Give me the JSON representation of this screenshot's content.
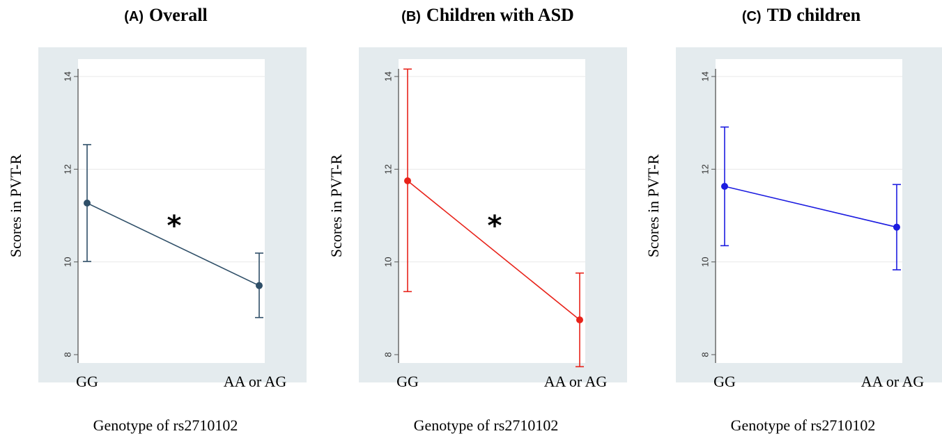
{
  "chart_data": [
    {
      "type": "line",
      "title_letter": "(A)",
      "title": "Overall",
      "xlabel": "Genotype of rs2710102",
      "ylabel": "Scores in PVT-R",
      "categories": [
        "GG",
        "AA or AG"
      ],
      "ylim": [
        8,
        14
      ],
      "yticks": [
        "8",
        "10",
        "12",
        "14"
      ],
      "grid": true,
      "color": "#2f4f68",
      "values": [
        11.27,
        9.49
      ],
      "ci_low": [
        10.01,
        8.8
      ],
      "ci_high": [
        12.53,
        10.19
      ],
      "annotation": "*"
    },
    {
      "type": "line",
      "title_letter": "(B)",
      "title": "Children with ASD",
      "xlabel": "Genotype of rs2710102",
      "ylabel": "Scores in PVT-R",
      "categories": [
        "GG",
        "AA or AG"
      ],
      "ylim": [
        8,
        14
      ],
      "yticks": [
        "8",
        "10",
        "12",
        "14"
      ],
      "grid": true,
      "color": "#e8231a",
      "values": [
        11.75,
        8.75
      ],
      "ci_low": [
        9.36,
        7.74
      ],
      "ci_high": [
        14.16,
        9.76
      ],
      "annotation": "*"
    },
    {
      "type": "line",
      "title_letter": "(C)",
      "title": "TD children",
      "xlabel": "Genotype of rs2710102",
      "ylabel": "Scores in PVT-R",
      "categories": [
        "GG",
        "AA or AG"
      ],
      "ylim": [
        8,
        14
      ],
      "yticks": [
        "8",
        "10",
        "12",
        "14"
      ],
      "grid": true,
      "color": "#1c1ce0",
      "values": [
        11.63,
        10.75
      ],
      "ci_low": [
        10.35,
        9.83
      ],
      "ci_high": [
        12.91,
        11.67
      ],
      "annotation": ""
    }
  ]
}
